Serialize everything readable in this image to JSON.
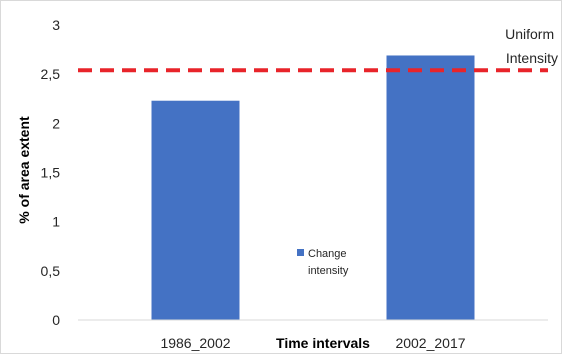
{
  "chart_data": {
    "type": "bar",
    "categories": [
      "1986_2002",
      "2002_2017"
    ],
    "series": [
      {
        "name": "Change intensity",
        "values": [
          2.23,
          2.69
        ],
        "color": "#4472c4"
      }
    ],
    "reference_line": {
      "label_lines": [
        "Uniform",
        "Intensity"
      ],
      "value": 2.54,
      "color": "#e8242a",
      "style": "dashed"
    },
    "xlabel": "Time intervals",
    "ylabel": "% of area extent",
    "ylim": [
      0,
      3
    ],
    "yticks": [
      {
        "value": 0,
        "label": "0"
      },
      {
        "value": 0.5,
        "label": "0,5"
      },
      {
        "value": 1,
        "label": "1"
      },
      {
        "value": 1.5,
        "label": "1,5"
      },
      {
        "value": 2,
        "label": "2"
      },
      {
        "value": 2.5,
        "label": "2,5"
      },
      {
        "value": 3,
        "label": "3"
      }
    ],
    "legend": {
      "placement": "center",
      "label_lines": [
        "Change",
        "intensity"
      ]
    },
    "grid": false
  }
}
